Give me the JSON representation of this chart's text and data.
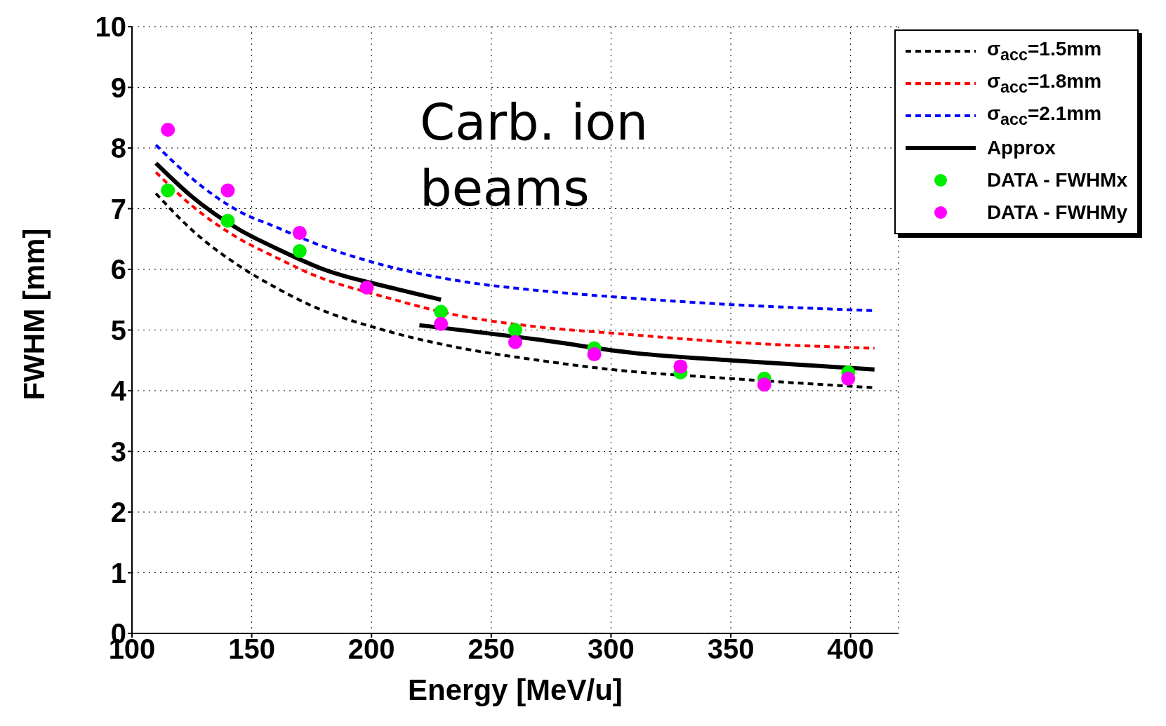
{
  "chart_data": {
    "type": "line",
    "xlabel": "Energy [MeV/u]",
    "ylabel": "FWHM [mm]",
    "xlim": [
      100,
      420
    ],
    "xticks": [
      100,
      150,
      200,
      250,
      300,
      350,
      400
    ],
    "ylim": [
      0,
      10
    ],
    "yticks": [
      0,
      1,
      2,
      3,
      4,
      5,
      6,
      7,
      8,
      9,
      10
    ],
    "grid": true,
    "legend": "top right",
    "annotations": [
      "Carb. ion beams"
    ],
    "series": [
      {
        "name": "σ$_{acc}$=1.5mm",
        "line_style": "dashed",
        "marker": "none",
        "color": "#000000",
        "x": [
          110,
          125,
          145,
          160,
          175,
          205,
          235,
          270,
          300,
          350,
          410
        ],
        "values": [
          7.25,
          6.65,
          6.05,
          5.7,
          5.4,
          5.0,
          4.72,
          4.5,
          4.35,
          4.2,
          4.05
        ]
      },
      {
        "name": "σ$_{acc}$=1.8mm",
        "line_style": "dashed",
        "marker": "none",
        "color": "#ff0000",
        "x": [
          110,
          125,
          145,
          160,
          175,
          205,
          235,
          270,
          300,
          350,
          410
        ],
        "values": [
          7.6,
          7.05,
          6.5,
          6.2,
          5.92,
          5.55,
          5.25,
          5.05,
          4.95,
          4.8,
          4.7
        ]
      },
      {
        "name": "σ$_{acc}$=2.1mm",
        "line_style": "dashed",
        "marker": "none",
        "color": "#0000ff",
        "x": [
          110,
          125,
          145,
          160,
          175,
          205,
          235,
          270,
          300,
          350,
          410
        ],
        "values": [
          8.05,
          7.5,
          6.95,
          6.7,
          6.45,
          6.07,
          5.82,
          5.65,
          5.55,
          5.42,
          5.32
        ]
      },
      {
        "name": "Approx",
        "line_style": "solid",
        "marker": "none",
        "color": "#000000",
        "x": [
          110,
          125,
          145,
          160,
          180,
          210,
          229,
          225,
          220,
          270,
          310,
          350,
          410
        ],
        "values": [
          7.75,
          7.2,
          6.65,
          6.35,
          6.0,
          5.68,
          5.5,
          null,
          5.08,
          4.84,
          4.62,
          4.5,
          4.35
        ]
      },
      {
        "name": "DATA - FWHMx",
        "type": "scatter",
        "marker": "circle",
        "color": "#00ee00",
        "x": [
          115,
          140,
          170,
          198,
          229,
          260,
          293,
          329,
          364,
          399
        ],
        "values": [
          7.3,
          6.8,
          6.3,
          null,
          5.3,
          5.0,
          4.7,
          4.3,
          4.2,
          4.3
        ]
      },
      {
        "name": "DATA - FWHMy",
        "type": "scatter",
        "marker": "circle",
        "color": "#ff00ff",
        "x": [
          115,
          140,
          170,
          198,
          229,
          260,
          293,
          329,
          364,
          399
        ],
        "values": [
          8.3,
          7.3,
          6.6,
          5.7,
          5.1,
          4.8,
          4.6,
          4.4,
          4.1,
          4.2
        ]
      }
    ]
  }
}
